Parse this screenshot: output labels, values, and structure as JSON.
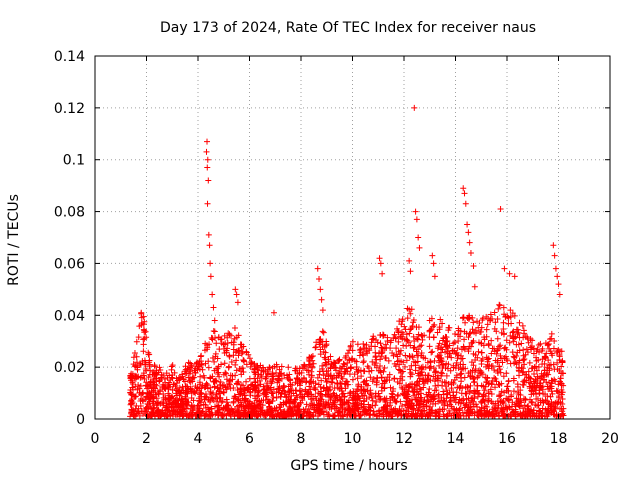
{
  "chart_data": {
    "type": "scatter",
    "title": "Day 173 of 2024, Rate Of TEC Index for receiver naus",
    "xlabel": "GPS time / hours",
    "ylabel": "ROTI / TECUs",
    "xlim": [
      0,
      20
    ],
    "ylim": [
      0,
      0.14
    ],
    "grid": true,
    "xticks": [
      "0",
      "2",
      "4",
      "6",
      "8",
      "10",
      "12",
      "14",
      "16",
      "18",
      "20"
    ],
    "yticks": [
      "0",
      "0.02",
      "0.04",
      "0.06",
      "0.08",
      "0.1",
      "0.12",
      "0.14"
    ],
    "marker": "+",
    "color": "#ff0000",
    "data_range_hours": [
      1.35,
      18.2
    ],
    "envelope": [
      [
        1.4,
        0.018
      ],
      [
        1.6,
        0.03
      ],
      [
        1.75,
        0.042
      ],
      [
        1.9,
        0.044
      ],
      [
        2.0,
        0.03
      ],
      [
        2.2,
        0.022
      ],
      [
        2.5,
        0.02
      ],
      [
        2.8,
        0.018
      ],
      [
        3.0,
        0.022
      ],
      [
        3.2,
        0.015
      ],
      [
        3.5,
        0.022
      ],
      [
        3.8,
        0.024
      ],
      [
        4.0,
        0.022
      ],
      [
        4.3,
        0.03
      ],
      [
        4.6,
        0.034
      ],
      [
        5.0,
        0.034
      ],
      [
        5.4,
        0.036
      ],
      [
        5.8,
        0.028
      ],
      [
        6.2,
        0.022
      ],
      [
        6.6,
        0.02
      ],
      [
        7.0,
        0.022
      ],
      [
        7.4,
        0.02
      ],
      [
        7.8,
        0.02
      ],
      [
        8.2,
        0.022
      ],
      [
        8.6,
        0.03
      ],
      [
        8.9,
        0.035
      ],
      [
        9.3,
        0.022
      ],
      [
        9.7,
        0.024
      ],
      [
        10.0,
        0.03
      ],
      [
        10.5,
        0.03
      ],
      [
        11.0,
        0.035
      ],
      [
        11.5,
        0.032
      ],
      [
        11.9,
        0.04
      ],
      [
        12.3,
        0.045
      ],
      [
        12.7,
        0.035
      ],
      [
        13.0,
        0.04
      ],
      [
        13.5,
        0.038
      ],
      [
        14.0,
        0.035
      ],
      [
        14.4,
        0.042
      ],
      [
        14.8,
        0.038
      ],
      [
        15.3,
        0.04
      ],
      [
        15.8,
        0.046
      ],
      [
        16.3,
        0.04
      ],
      [
        16.8,
        0.034
      ],
      [
        17.3,
        0.03
      ],
      [
        17.8,
        0.034
      ],
      [
        18.2,
        0.026
      ]
    ],
    "spikes": [
      [
        4.35,
        0.107
      ],
      [
        4.33,
        0.103
      ],
      [
        4.38,
        0.1
      ],
      [
        4.36,
        0.097
      ],
      [
        4.4,
        0.092
      ],
      [
        4.37,
        0.083
      ],
      [
        4.42,
        0.071
      ],
      [
        4.45,
        0.067
      ],
      [
        4.47,
        0.06
      ],
      [
        4.5,
        0.055
      ],
      [
        4.55,
        0.048
      ],
      [
        4.6,
        0.043
      ],
      [
        4.65,
        0.038
      ],
      [
        5.45,
        0.05
      ],
      [
        5.5,
        0.048
      ],
      [
        5.55,
        0.045
      ],
      [
        6.95,
        0.041
      ],
      [
        8.65,
        0.058
      ],
      [
        8.7,
        0.054
      ],
      [
        8.75,
        0.05
      ],
      [
        8.8,
        0.046
      ],
      [
        8.85,
        0.042
      ],
      [
        11.05,
        0.062
      ],
      [
        11.1,
        0.06
      ],
      [
        11.15,
        0.056
      ],
      [
        12.2,
        0.061
      ],
      [
        12.25,
        0.057
      ],
      [
        12.4,
        0.12
      ],
      [
        12.45,
        0.08
      ],
      [
        12.5,
        0.077
      ],
      [
        12.55,
        0.07
      ],
      [
        12.6,
        0.066
      ],
      [
        13.1,
        0.063
      ],
      [
        13.15,
        0.06
      ],
      [
        13.2,
        0.055
      ],
      [
        14.3,
        0.089
      ],
      [
        14.35,
        0.087
      ],
      [
        14.4,
        0.083
      ],
      [
        14.45,
        0.075
      ],
      [
        14.5,
        0.072
      ],
      [
        14.55,
        0.068
      ],
      [
        14.6,
        0.064
      ],
      [
        14.7,
        0.059
      ],
      [
        14.75,
        0.051
      ],
      [
        15.75,
        0.081
      ],
      [
        15.9,
        0.058
      ],
      [
        16.1,
        0.056
      ],
      [
        16.3,
        0.055
      ],
      [
        17.8,
        0.067
      ],
      [
        17.85,
        0.063
      ],
      [
        17.9,
        0.058
      ],
      [
        17.95,
        0.055
      ],
      [
        18.0,
        0.052
      ],
      [
        18.05,
        0.048
      ]
    ]
  }
}
